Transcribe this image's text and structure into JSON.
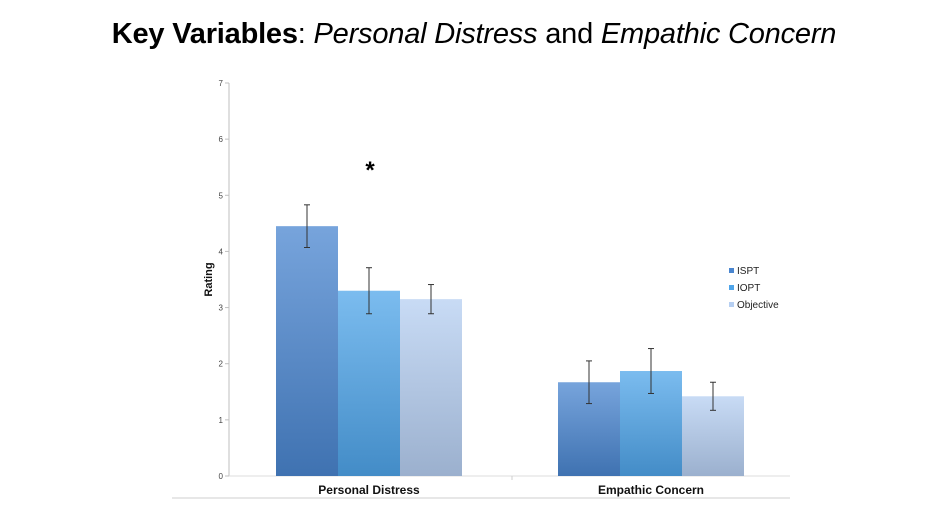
{
  "title": {
    "part1": "Key Variables",
    "part2": ": ",
    "part3": "Personal Distress",
    "part4": " and ",
    "part5": "Empathic Concern"
  },
  "chart_data": {
    "type": "bar",
    "ylabel": "Rating",
    "xlabel": "",
    "ylim": [
      0,
      7
    ],
    "yticks": [
      "0",
      "1",
      "2",
      "3",
      "4",
      "5",
      "6",
      "7"
    ],
    "categories": [
      "Personal Distress",
      "Empathic Concern"
    ],
    "series": [
      {
        "name": "ISPT",
        "values": [
          4.45,
          1.67
        ],
        "error": [
          0.38,
          0.38
        ],
        "color": "#4a86d0"
      },
      {
        "name": "IOPT",
        "values": [
          3.3,
          1.87
        ],
        "error": [
          0.41,
          0.4
        ],
        "color": "#4fa5ea"
      },
      {
        "name": "Objective",
        "values": [
          3.15,
          1.42
        ],
        "error": [
          0.26,
          0.25
        ],
        "color": "#b6cff2"
      }
    ],
    "annotations": [
      {
        "text": "*",
        "category": "Personal Distress"
      }
    ],
    "legend_position": "right",
    "grid": false
  }
}
